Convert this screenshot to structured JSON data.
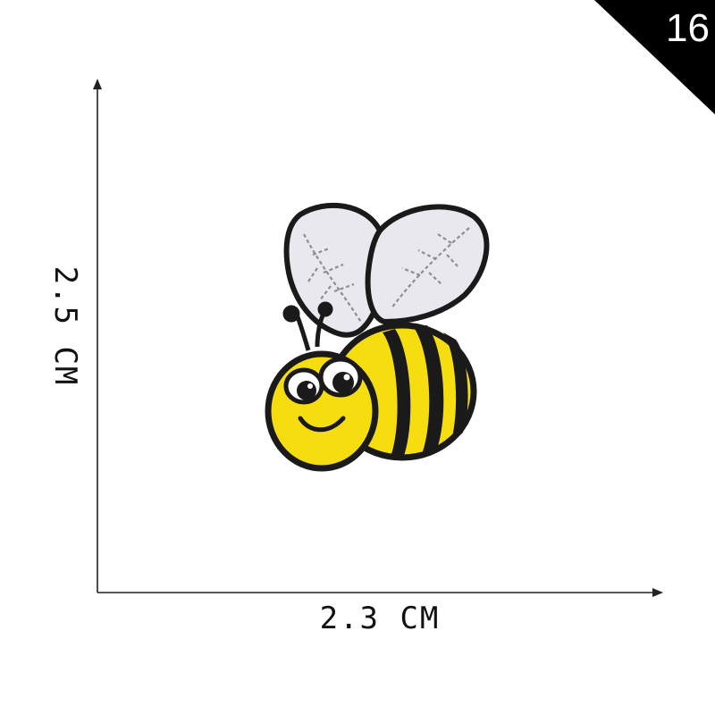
{
  "corner_badge": {
    "text": "16",
    "color": "#000000"
  },
  "dimensions": {
    "width_label": "2.3 CM",
    "height_label": "2.5 CM"
  },
  "patch": {
    "subject": "bee embroidered patch",
    "colors": {
      "body": "#f6dd10",
      "stripes": "#1a1a1a",
      "wings": "#e9e8ef",
      "outline": "#1a1a1a"
    }
  }
}
